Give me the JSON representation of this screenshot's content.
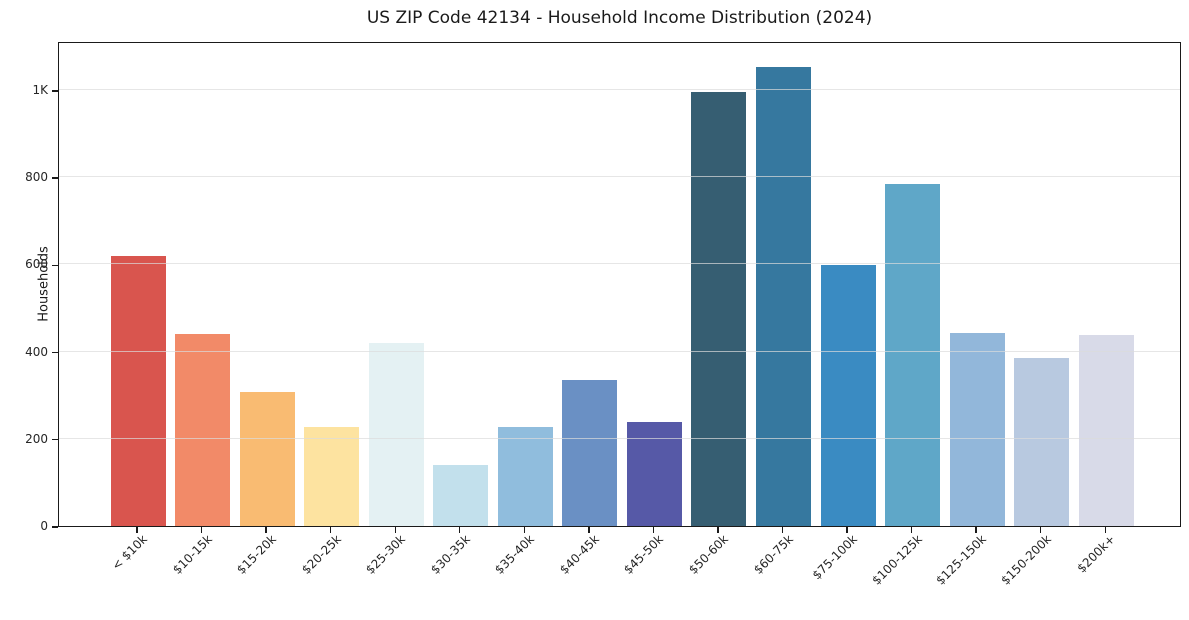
{
  "title": "US ZIP Code 42134 - Household Income Distribution (2024)",
  "chart_data": {
    "type": "bar",
    "title": "US ZIP Code 42134 - Household Income Distribution (2024)",
    "xlabel": "",
    "ylabel": "Households",
    "categories": [
      "< $10k",
      "$10-15k",
      "$15-20k",
      "$20-25k",
      "$25-30k",
      "$30-35k",
      "$35-40k",
      "$40-45k",
      "$45-50k",
      "$50-60k",
      "$60-75k",
      "$75-100k",
      "$100-125k",
      "$125-150k",
      "$150-200k",
      "$200k+"
    ],
    "values": [
      618,
      441,
      307,
      228,
      420,
      140,
      227,
      334,
      238,
      995,
      1053,
      598,
      783,
      442,
      386,
      439
    ],
    "bar_colors": [
      "#d9554e",
      "#f28a68",
      "#f9bb72",
      "#fde3a0",
      "#e4f1f3",
      "#c2e0ec",
      "#90bddd",
      "#6a90c4",
      "#5659a7",
      "#365e72",
      "#36789f",
      "#3a8bc2",
      "#5fa7c8",
      "#92b7da",
      "#b8c9e0",
      "#d8dae8"
    ],
    "ylim": [
      0,
      1112
    ],
    "yticks": [
      {
        "value": 0,
        "label": "0"
      },
      {
        "value": 200,
        "label": "200"
      },
      {
        "value": 400,
        "label": "400"
      },
      {
        "value": 600,
        "label": "600"
      },
      {
        "value": 800,
        "label": "800"
      },
      {
        "value": 1000,
        "label": "1K"
      }
    ],
    "grid": "horizontal",
    "legend_position": "none"
  },
  "colors": {
    "background": "#ffffff",
    "spine": "#1a1a1a",
    "grid": "#e6e6e6",
    "title_text": "#1a1a1a",
    "tick_text": "#262626"
  }
}
